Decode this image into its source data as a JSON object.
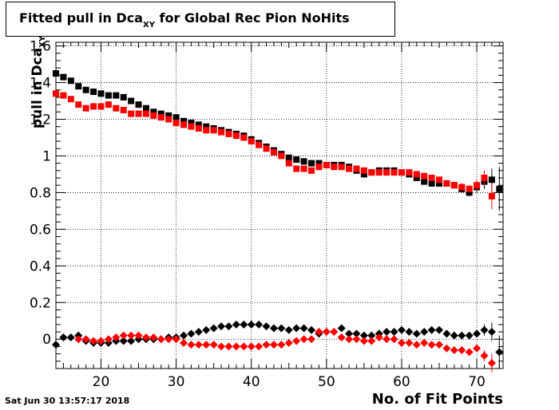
{
  "title": {
    "main": "Fitted pull in Dca",
    "sub": "XY",
    "rest": " for Global Rec Pion NoHits"
  },
  "timestamp": "Sat Jun 30 13:57:17 2018",
  "chart_data": {
    "type": "scatter",
    "xlabel": "No. of Fit Points",
    "ylabel_main": "pull in Dca",
    "ylabel_sub": "XY",
    "xlim": [
      14,
      73.5
    ],
    "ylim": [
      -0.16,
      1.62
    ],
    "xticks": [
      20,
      30,
      40,
      50,
      60,
      70
    ],
    "yticks": [
      0,
      0.2,
      0.4,
      0.6,
      0.8,
      1,
      1.2,
      1.4,
      1.6
    ],
    "ytick_labels": [
      "0",
      "0.2",
      "0.4",
      "0.6",
      "0.8",
      "1",
      "1.2",
      "1.4",
      "1.6"
    ],
    "grid": true,
    "series": [
      {
        "color": "#000000",
        "marker": "square",
        "x": [
          14,
          15,
          16,
          17,
          18,
          19,
          20,
          21,
          22,
          23,
          24,
          25,
          26,
          27,
          28,
          29,
          30,
          31,
          32,
          33,
          34,
          35,
          36,
          37,
          38,
          39,
          40,
          41,
          42,
          43,
          44,
          45,
          46,
          47,
          48,
          49,
          50,
          51,
          52,
          53,
          54,
          55,
          56,
          57,
          58,
          59,
          60,
          61,
          62,
          63,
          64,
          65,
          66,
          67,
          68,
          69,
          70,
          71,
          72,
          73
        ],
        "y": [
          1.45,
          1.43,
          1.41,
          1.38,
          1.36,
          1.35,
          1.34,
          1.33,
          1.33,
          1.32,
          1.3,
          1.28,
          1.26,
          1.24,
          1.23,
          1.22,
          1.21,
          1.19,
          1.18,
          1.17,
          1.16,
          1.15,
          1.14,
          1.13,
          1.12,
          1.11,
          1.09,
          1.07,
          1.05,
          1.03,
          1.01,
          0.99,
          0.98,
          0.97,
          0.96,
          0.96,
          0.95,
          0.95,
          0.95,
          0.94,
          0.92,
          0.9,
          0.91,
          0.92,
          0.92,
          0.92,
          0.91,
          0.9,
          0.88,
          0.86,
          0.85,
          0.85,
          0.85,
          0.84,
          0.82,
          0.8,
          0.83,
          0.86,
          0.87,
          0.82
        ],
        "err": [
          0.01,
          0.01,
          0.01,
          0.01,
          0.01,
          0.01,
          0.01,
          0.01,
          0.01,
          0.01,
          0.01,
          0.01,
          0.01,
          0.01,
          0.01,
          0.01,
          0.01,
          0.01,
          0.01,
          0.01,
          0.01,
          0.01,
          0.01,
          0.01,
          0.01,
          0.01,
          0.01,
          0.01,
          0.01,
          0.01,
          0.01,
          0.01,
          0.01,
          0.01,
          0.01,
          0.01,
          0.01,
          0.01,
          0.01,
          0.01,
          0.01,
          0.01,
          0.01,
          0.01,
          0.01,
          0.01,
          0.01,
          0.01,
          0.01,
          0.01,
          0.01,
          0.01,
          0.01,
          0.01,
          0.02,
          0.02,
          0.03,
          0.04,
          0.06,
          0.12
        ]
      },
      {
        "color": "#ff0000",
        "marker": "square",
        "x": [
          14,
          15,
          16,
          17,
          18,
          19,
          20,
          21,
          22,
          23,
          24,
          25,
          26,
          27,
          28,
          29,
          30,
          31,
          32,
          33,
          34,
          35,
          36,
          37,
          38,
          39,
          40,
          41,
          42,
          43,
          44,
          45,
          46,
          47,
          48,
          49,
          50,
          51,
          52,
          53,
          54,
          55,
          56,
          57,
          58,
          59,
          60,
          61,
          62,
          63,
          64,
          65,
          66,
          67,
          68,
          69,
          70,
          71,
          72
        ],
        "y": [
          1.34,
          1.33,
          1.31,
          1.28,
          1.26,
          1.27,
          1.27,
          1.28,
          1.26,
          1.25,
          1.23,
          1.23,
          1.23,
          1.22,
          1.21,
          1.2,
          1.18,
          1.17,
          1.16,
          1.15,
          1.14,
          1.14,
          1.13,
          1.12,
          1.11,
          1.1,
          1.08,
          1.06,
          1.04,
          1.02,
          1.0,
          0.96,
          0.93,
          0.93,
          0.92,
          0.94,
          0.95,
          0.94,
          0.94,
          0.93,
          0.93,
          0.92,
          0.91,
          0.91,
          0.91,
          0.91,
          0.91,
          0.91,
          0.9,
          0.89,
          0.88,
          0.87,
          0.85,
          0.84,
          0.83,
          0.82,
          0.84,
          0.88,
          0.78
        ],
        "err": [
          0.01,
          0.01,
          0.01,
          0.01,
          0.01,
          0.01,
          0.01,
          0.01,
          0.01,
          0.01,
          0.01,
          0.01,
          0.01,
          0.01,
          0.01,
          0.01,
          0.01,
          0.01,
          0.01,
          0.01,
          0.01,
          0.01,
          0.01,
          0.01,
          0.01,
          0.01,
          0.01,
          0.01,
          0.01,
          0.01,
          0.01,
          0.01,
          0.01,
          0.01,
          0.01,
          0.01,
          0.01,
          0.01,
          0.01,
          0.01,
          0.01,
          0.01,
          0.01,
          0.01,
          0.01,
          0.01,
          0.01,
          0.01,
          0.01,
          0.01,
          0.01,
          0.01,
          0.01,
          0.01,
          0.02,
          0.02,
          0.03,
          0.04,
          0.07
        ]
      },
      {
        "color": "#000000",
        "marker": "diamond",
        "x": [
          14,
          15,
          16,
          17,
          18,
          19,
          20,
          21,
          22,
          23,
          24,
          25,
          26,
          27,
          28,
          29,
          30,
          31,
          32,
          33,
          34,
          35,
          36,
          37,
          38,
          39,
          40,
          41,
          42,
          43,
          44,
          45,
          46,
          47,
          48,
          49,
          50,
          51,
          52,
          53,
          54,
          55,
          56,
          57,
          58,
          59,
          60,
          61,
          62,
          63,
          64,
          65,
          66,
          67,
          68,
          69,
          70,
          71,
          72,
          73
        ],
        "y": [
          -0.03,
          0.01,
          0.01,
          0.02,
          -0.01,
          -0.02,
          -0.02,
          -0.02,
          -0.01,
          -0.01,
          -0.01,
          0.0,
          0.0,
          0.0,
          0.0,
          0.01,
          0.01,
          0.02,
          0.03,
          0.04,
          0.05,
          0.06,
          0.07,
          0.07,
          0.08,
          0.08,
          0.08,
          0.08,
          0.07,
          0.06,
          0.06,
          0.05,
          0.06,
          0.06,
          0.05,
          0.03,
          0.04,
          0.04,
          0.06,
          0.03,
          0.03,
          0.02,
          0.02,
          0.03,
          0.04,
          0.04,
          0.05,
          0.04,
          0.03,
          0.04,
          0.05,
          0.05,
          0.03,
          0.02,
          0.02,
          0.02,
          0.03,
          0.05,
          0.04,
          -0.07
        ],
        "err": [
          0.01,
          0.01,
          0.01,
          0.01,
          0.01,
          0.01,
          0.01,
          0.01,
          0.01,
          0.01,
          0.01,
          0.01,
          0.01,
          0.01,
          0.01,
          0.01,
          0.01,
          0.01,
          0.01,
          0.01,
          0.01,
          0.01,
          0.01,
          0.01,
          0.01,
          0.01,
          0.01,
          0.01,
          0.01,
          0.01,
          0.01,
          0.01,
          0.01,
          0.01,
          0.01,
          0.01,
          0.01,
          0.01,
          0.01,
          0.01,
          0.01,
          0.01,
          0.01,
          0.01,
          0.01,
          0.01,
          0.01,
          0.01,
          0.01,
          0.01,
          0.01,
          0.01,
          0.01,
          0.01,
          0.01,
          0.01,
          0.02,
          0.03,
          0.05,
          0.09
        ]
      },
      {
        "color": "#ff0000",
        "marker": "diamond",
        "x": [
          17,
          18,
          19,
          20,
          21,
          22,
          23,
          24,
          25,
          26,
          27,
          28,
          29,
          30,
          31,
          32,
          33,
          34,
          35,
          36,
          37,
          38,
          39,
          40,
          41,
          42,
          43,
          44,
          45,
          46,
          47,
          48,
          49,
          50,
          51,
          52,
          53,
          54,
          55,
          56,
          57,
          58,
          59,
          60,
          61,
          62,
          63,
          64,
          65,
          66,
          67,
          68,
          69,
          70,
          71,
          72
        ],
        "y": [
          0.0,
          0.0,
          -0.01,
          -0.01,
          0.0,
          0.01,
          0.02,
          0.02,
          0.02,
          0.01,
          0.01,
          0.0,
          0.0,
          0.0,
          -0.02,
          -0.03,
          -0.03,
          -0.03,
          -0.03,
          -0.04,
          -0.04,
          -0.04,
          -0.04,
          -0.04,
          -0.04,
          -0.03,
          -0.03,
          -0.03,
          -0.02,
          -0.01,
          0.0,
          0.0,
          0.04,
          0.04,
          0.04,
          0.01,
          0.0,
          0.0,
          -0.01,
          -0.01,
          0.01,
          0.0,
          0.0,
          -0.02,
          -0.02,
          -0.03,
          -0.02,
          -0.03,
          -0.03,
          -0.05,
          -0.06,
          -0.06,
          -0.07,
          -0.05,
          -0.09,
          -0.13
        ],
        "err": [
          0.01,
          0.01,
          0.01,
          0.01,
          0.01,
          0.01,
          0.01,
          0.01,
          0.01,
          0.01,
          0.01,
          0.01,
          0.01,
          0.01,
          0.01,
          0.01,
          0.01,
          0.01,
          0.01,
          0.01,
          0.01,
          0.01,
          0.01,
          0.01,
          0.01,
          0.01,
          0.01,
          0.01,
          0.01,
          0.01,
          0.01,
          0.01,
          0.01,
          0.01,
          0.01,
          0.01,
          0.01,
          0.01,
          0.01,
          0.01,
          0.01,
          0.01,
          0.01,
          0.01,
          0.01,
          0.01,
          0.01,
          0.01,
          0.01,
          0.01,
          0.01,
          0.01,
          0.01,
          0.02,
          0.03,
          0.05
        ]
      }
    ]
  }
}
